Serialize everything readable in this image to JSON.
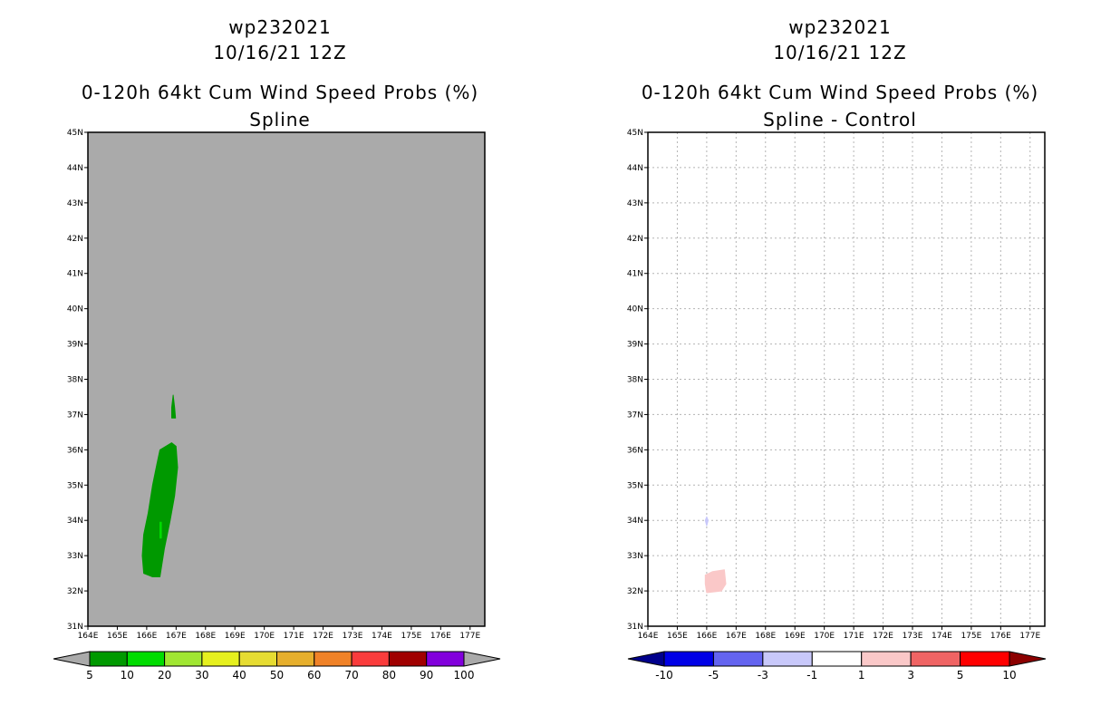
{
  "chart_data": [
    {
      "type": "heatmap",
      "title_lines": [
        "wp232021",
        "10/16/21 12Z",
        "0-120h 64kt Cum Wind Speed Probs (%)",
        "Spline"
      ],
      "x_ticks": [
        "164E",
        "165E",
        "166E",
        "167E",
        "168E",
        "169E",
        "170E",
        "171E",
        "172E",
        "173E",
        "174E",
        "175E",
        "176E",
        "177E"
      ],
      "y_ticks": [
        "31N",
        "32N",
        "33N",
        "34N",
        "35N",
        "36N",
        "37N",
        "38N",
        "39N",
        "40N",
        "41N",
        "42N",
        "43N",
        "44N",
        "45N"
      ],
      "xlim": [
        164,
        177.5
      ],
      "ylim": [
        31,
        45
      ],
      "background_color": "#aaaaaa",
      "grid": false,
      "colorbar": {
        "labels": [
          "5",
          "10",
          "20",
          "30",
          "40",
          "50",
          "60",
          "70",
          "80",
          "90",
          "100"
        ],
        "colors": [
          "#009900",
          "#00dc00",
          "#a0e632",
          "#e6f01e",
          "#e6dc32",
          "#e6af2d",
          "#f08228",
          "#fa3c3c",
          "#a00000",
          "#8200dc"
        ],
        "end_color": "#aaaaaa"
      },
      "regions": [
        {
          "level": "5-10",
          "color": "#009900",
          "points": [
            [
              166.85,
              36.2
            ],
            [
              167.0,
              36.1
            ],
            [
              167.05,
              35.5
            ],
            [
              166.95,
              34.7
            ],
            [
              166.8,
              34.0
            ],
            [
              166.6,
              33.2
            ],
            [
              166.45,
              32.4
            ],
            [
              166.2,
              32.4
            ],
            [
              165.9,
              32.5
            ],
            [
              165.85,
              33.0
            ],
            [
              165.9,
              33.6
            ],
            [
              166.05,
              34.2
            ],
            [
              166.2,
              35.0
            ],
            [
              166.35,
              35.6
            ],
            [
              166.45,
              36.0
            ]
          ]
        },
        {
          "level": "5-10",
          "color": "#009900",
          "points": [
            [
              166.9,
              37.55
            ],
            [
              166.95,
              37.2
            ],
            [
              166.98,
              36.9
            ],
            [
              166.85,
              36.9
            ],
            [
              166.85,
              37.2
            ]
          ]
        },
        {
          "level": "10-20",
          "color": "#00dc00",
          "points": [
            [
              166.45,
              33.95
            ],
            [
              166.5,
              33.95
            ],
            [
              166.5,
              33.5
            ],
            [
              166.45,
              33.5
            ]
          ]
        }
      ]
    },
    {
      "type": "heatmap",
      "title_lines": [
        "wp232021",
        "10/16/21 12Z",
        "0-120h 64kt Cum Wind Speed Probs (%)",
        "Spline - Control"
      ],
      "x_ticks": [
        "164E",
        "165E",
        "166E",
        "167E",
        "168E",
        "169E",
        "170E",
        "171E",
        "172E",
        "173E",
        "174E",
        "175E",
        "176E",
        "177E"
      ],
      "y_ticks": [
        "31N",
        "32N",
        "33N",
        "34N",
        "35N",
        "36N",
        "37N",
        "38N",
        "39N",
        "40N",
        "41N",
        "42N",
        "43N",
        "44N",
        "45N"
      ],
      "xlim": [
        164,
        177.5
      ],
      "ylim": [
        31,
        45
      ],
      "background_color": "#ffffff",
      "grid": true,
      "colorbar": {
        "labels": [
          "-10",
          "-5",
          "-3",
          "-1",
          "1",
          "3",
          "5",
          "10"
        ],
        "colors": [
          "#0000e6",
          "#6464f0",
          "#c8c8fa",
          "#ffffff",
          "#fac8c8",
          "#f06464",
          "#ff0000"
        ],
        "low_end_color": "#00008c",
        "high_end_color": "#8c0000"
      },
      "regions": [
        {
          "level": "1-3",
          "color": "#fac8c8",
          "points": [
            [
              165.95,
              32.45
            ],
            [
              166.2,
              32.55
            ],
            [
              166.6,
              32.6
            ],
            [
              166.65,
              32.2
            ],
            [
              166.5,
              32.0
            ],
            [
              166.0,
              31.95
            ],
            [
              165.95,
              32.2
            ]
          ]
        },
        {
          "level": "-3--1",
          "color": "#c8c8fa",
          "points": [
            [
              166.0,
              34.1
            ],
            [
              166.05,
              34.0
            ],
            [
              166.0,
              33.85
            ],
            [
              165.95,
              34.0
            ]
          ]
        }
      ]
    }
  ]
}
